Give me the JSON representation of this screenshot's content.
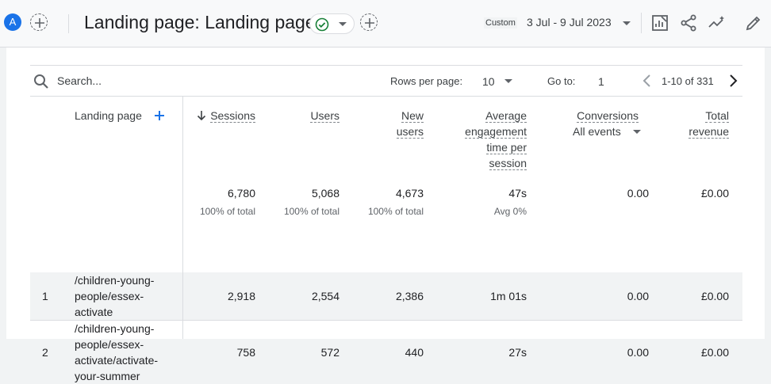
{
  "header": {
    "avatar_letter": "A",
    "title": "Landing page: Landing page",
    "custom_label": "Custom",
    "date_range": "3 Jul - 9 Jul 2023",
    "accent_color": "#1a73e8",
    "icons": [
      "add-comparison-icon",
      "status-ok-icon",
      "customize-report-icon",
      "share-icon",
      "insights-icon",
      "edit-icon"
    ]
  },
  "toolbar": {
    "search_placeholder": "Search...",
    "rows_per_page_label": "Rows per page:",
    "rows_per_page_value": "10",
    "go_to_label": "Go to:",
    "go_to_value": "1",
    "range_text": "1-10 of 331"
  },
  "table": {
    "dimension_header": "Landing page",
    "columns": [
      {
        "key": "sessions",
        "label_lines": [
          "Sessions"
        ]
      },
      {
        "key": "users",
        "label_lines": [
          "Users"
        ]
      },
      {
        "key": "new_users",
        "label_lines": [
          "New",
          "users"
        ]
      },
      {
        "key": "avg_engagement",
        "label_lines": [
          "Average",
          "engagement",
          "time per",
          "session"
        ]
      },
      {
        "key": "conversions",
        "label_lines": [
          "Conversions"
        ],
        "sub_label": "All events"
      },
      {
        "key": "total_revenue",
        "label_lines": [
          "Total",
          "revenue"
        ]
      }
    ],
    "totals": {
      "sessions": "6,780",
      "sessions_sub": "100% of total",
      "users": "5,068",
      "users_sub": "100% of total",
      "new_users": "4,673",
      "new_users_sub": "100% of total",
      "avg_engagement": "47s",
      "avg_engagement_sub": "Avg 0%",
      "conversions": "0.00",
      "total_revenue": "£0.00"
    },
    "rows": [
      {
        "num": "1",
        "landing_page": "/children-young-people/essex-activate",
        "sessions": "2,918",
        "users": "2,554",
        "new_users": "2,386",
        "avg_engagement": "1m 01s",
        "conversions": "0.00",
        "total_revenue": "£0.00"
      },
      {
        "num": "2",
        "landing_page": "/children-young-people/essex-activate/activate-your-summer",
        "sessions": "758",
        "users": "572",
        "new_users": "440",
        "avg_engagement": "27s",
        "conversions": "0.00",
        "total_revenue": "£0.00"
      }
    ]
  }
}
